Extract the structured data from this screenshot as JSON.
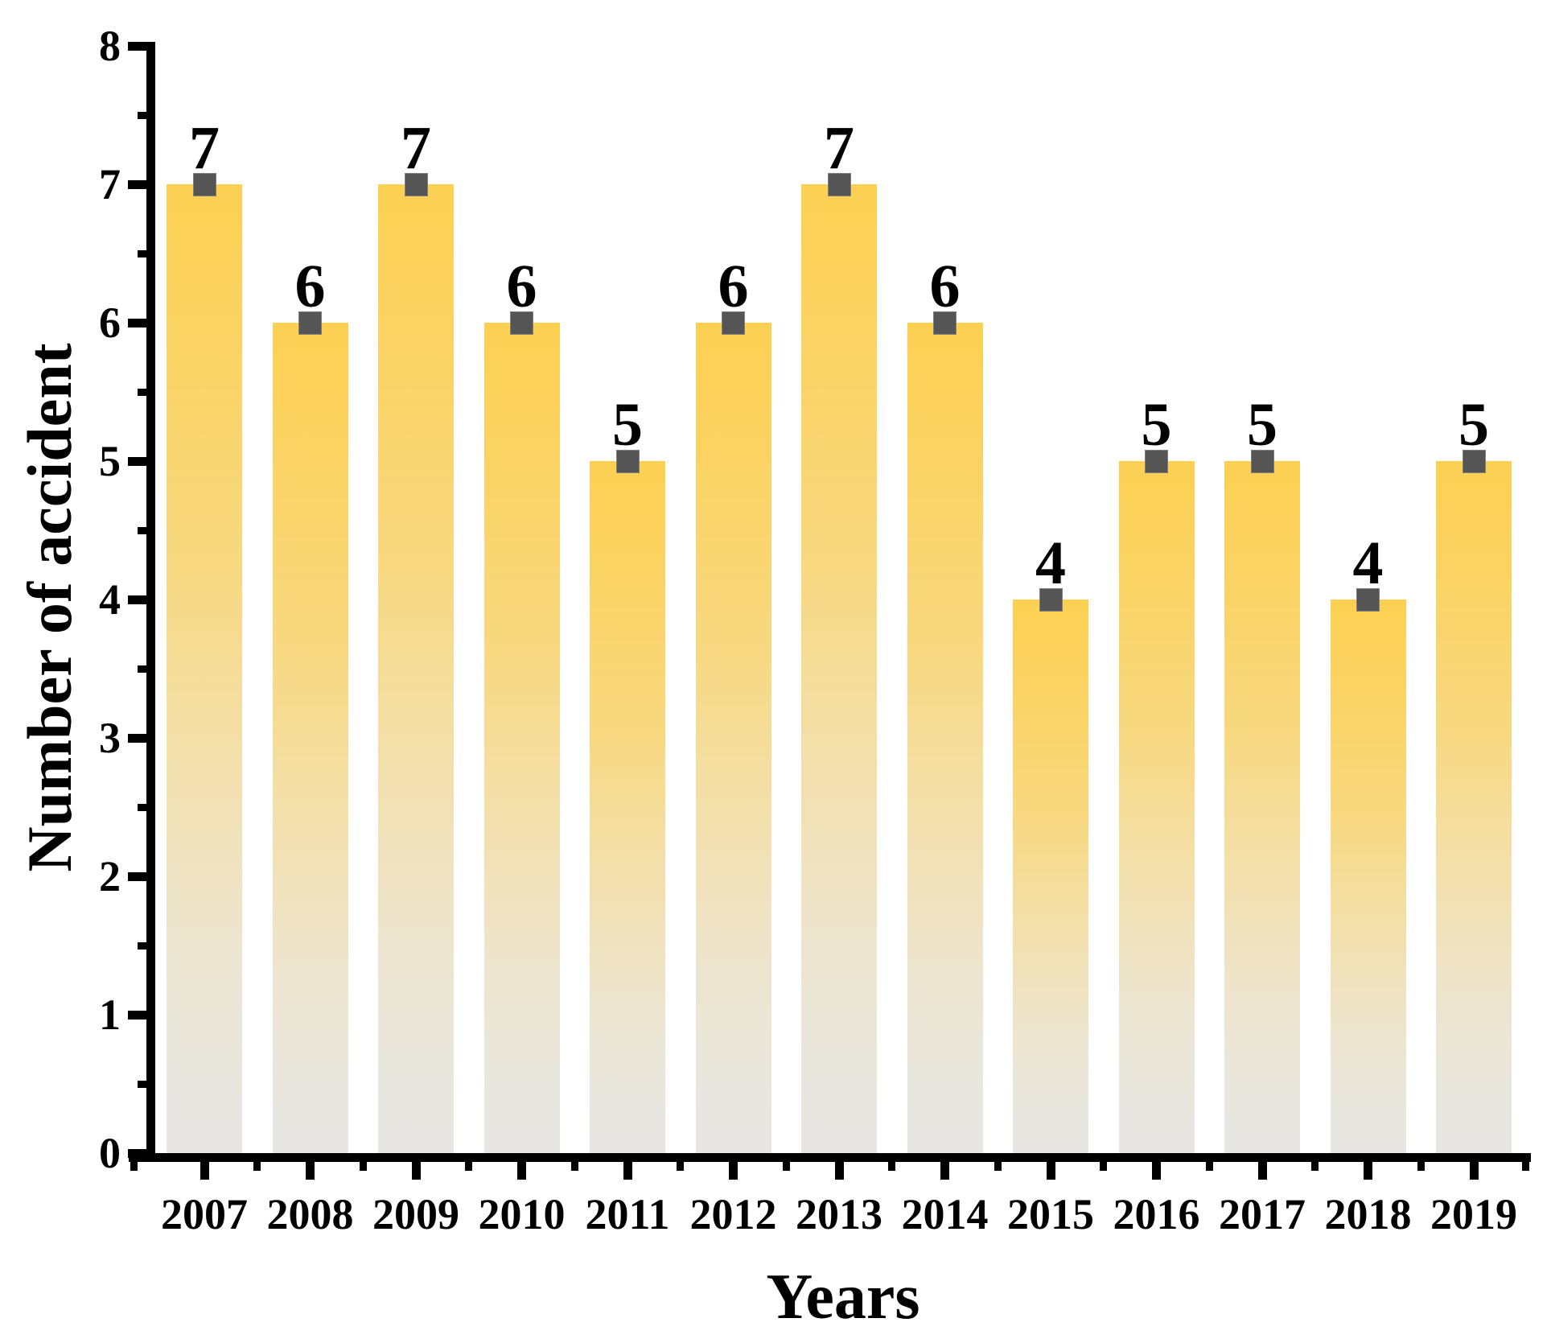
{
  "chart_data": {
    "type": "bar",
    "title": "",
    "xlabel": "Years",
    "ylabel": "Number of accident",
    "categories": [
      "2007",
      "2008",
      "2009",
      "2010",
      "2011",
      "2012",
      "2013",
      "2014",
      "2015",
      "2016",
      "2017",
      "2018",
      "2019"
    ],
    "values": [
      7,
      6,
      7,
      6,
      5,
      6,
      7,
      6,
      4,
      5,
      5,
      4,
      5
    ],
    "data_labels": true,
    "ylim": [
      0,
      8
    ],
    "yticks": [
      0,
      1,
      2,
      3,
      4,
      5,
      6,
      7,
      8
    ],
    "yminor_interval": 0.5,
    "grid": false,
    "legend": "none",
    "marker": {
      "shape": "square",
      "color": "#555555"
    },
    "colors": {
      "bar_gradient_top": "#FCD052",
      "bar_gradient_mid": "#F3DFA9",
      "bar_gradient_bottom": "#E7E6E4",
      "axis": "#000000",
      "text": "#000000",
      "background": "#FFFFFF"
    }
  }
}
